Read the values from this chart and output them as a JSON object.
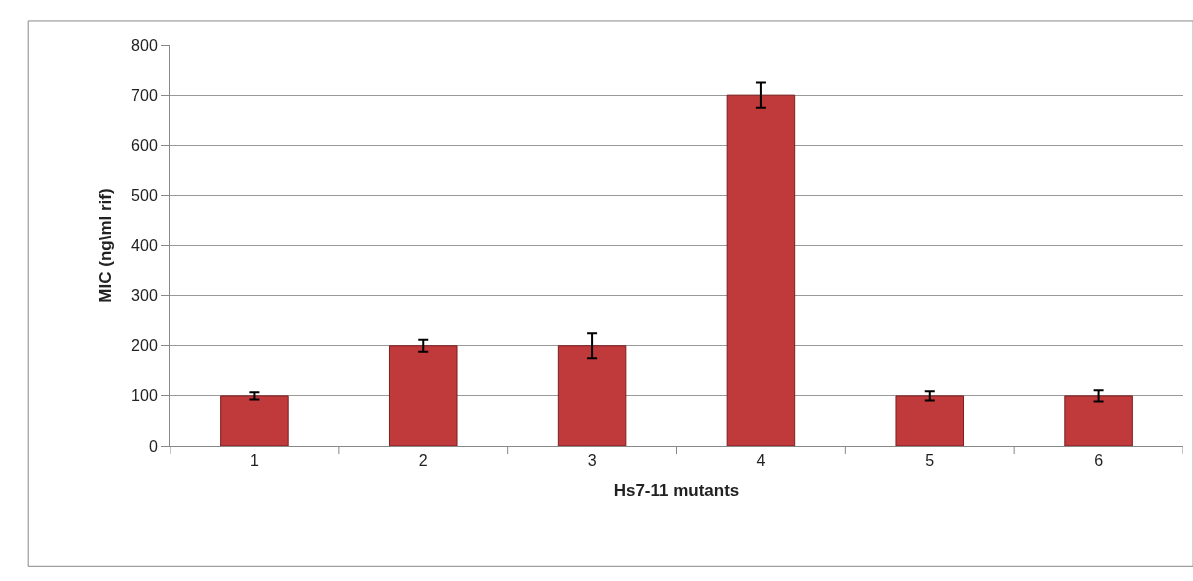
{
  "chart_data": {
    "type": "bar",
    "xlabel": "Hs7-11 mutants",
    "ylabel": "MIC (ng\\ml rif)",
    "categories": [
      "1",
      "2",
      "3",
      "4",
      "5",
      "6"
    ],
    "values": [
      100,
      200,
      200,
      700,
      100,
      100
    ],
    "errors": [
      7,
      12,
      25,
      25,
      9,
      11
    ],
    "color": "#c0393b",
    "ylim": [
      0,
      800
    ],
    "yticks": [
      0,
      100,
      200,
      300,
      400,
      500,
      600,
      700,
      800
    ],
    "grid": "y"
  }
}
